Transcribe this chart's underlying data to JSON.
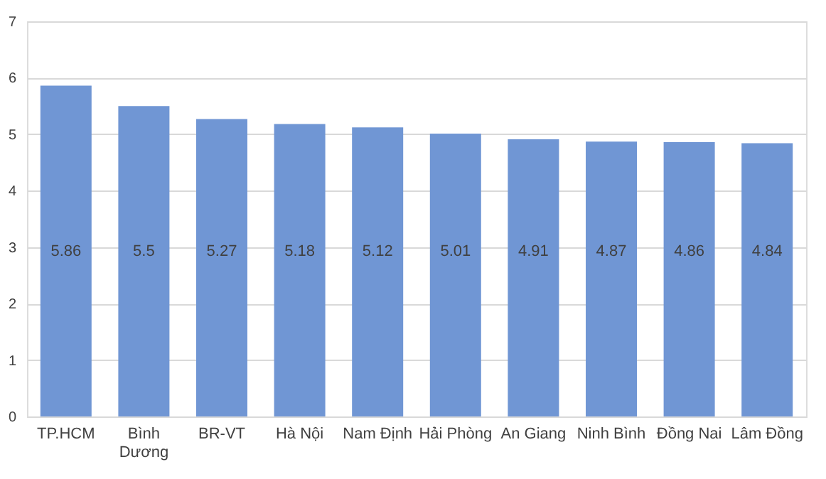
{
  "chart_data": {
    "type": "bar",
    "categories": [
      "TP.HCM",
      "Bình Dương",
      "BR-VT",
      "Hà Nội",
      "Nam Định",
      "Hải Phòng",
      "An Giang",
      "Ninh Bình",
      "Đồng Nai",
      "Lâm Đồng"
    ],
    "values": [
      5.86,
      5.5,
      5.27,
      5.18,
      5.12,
      5.01,
      4.91,
      4.87,
      4.86,
      4.84
    ],
    "color": "#7096d4",
    "ylim": [
      0,
      7
    ],
    "yticks": [
      0,
      1,
      2,
      3,
      4,
      5,
      6,
      7
    ],
    "grid": "y",
    "data_labels": true
  }
}
